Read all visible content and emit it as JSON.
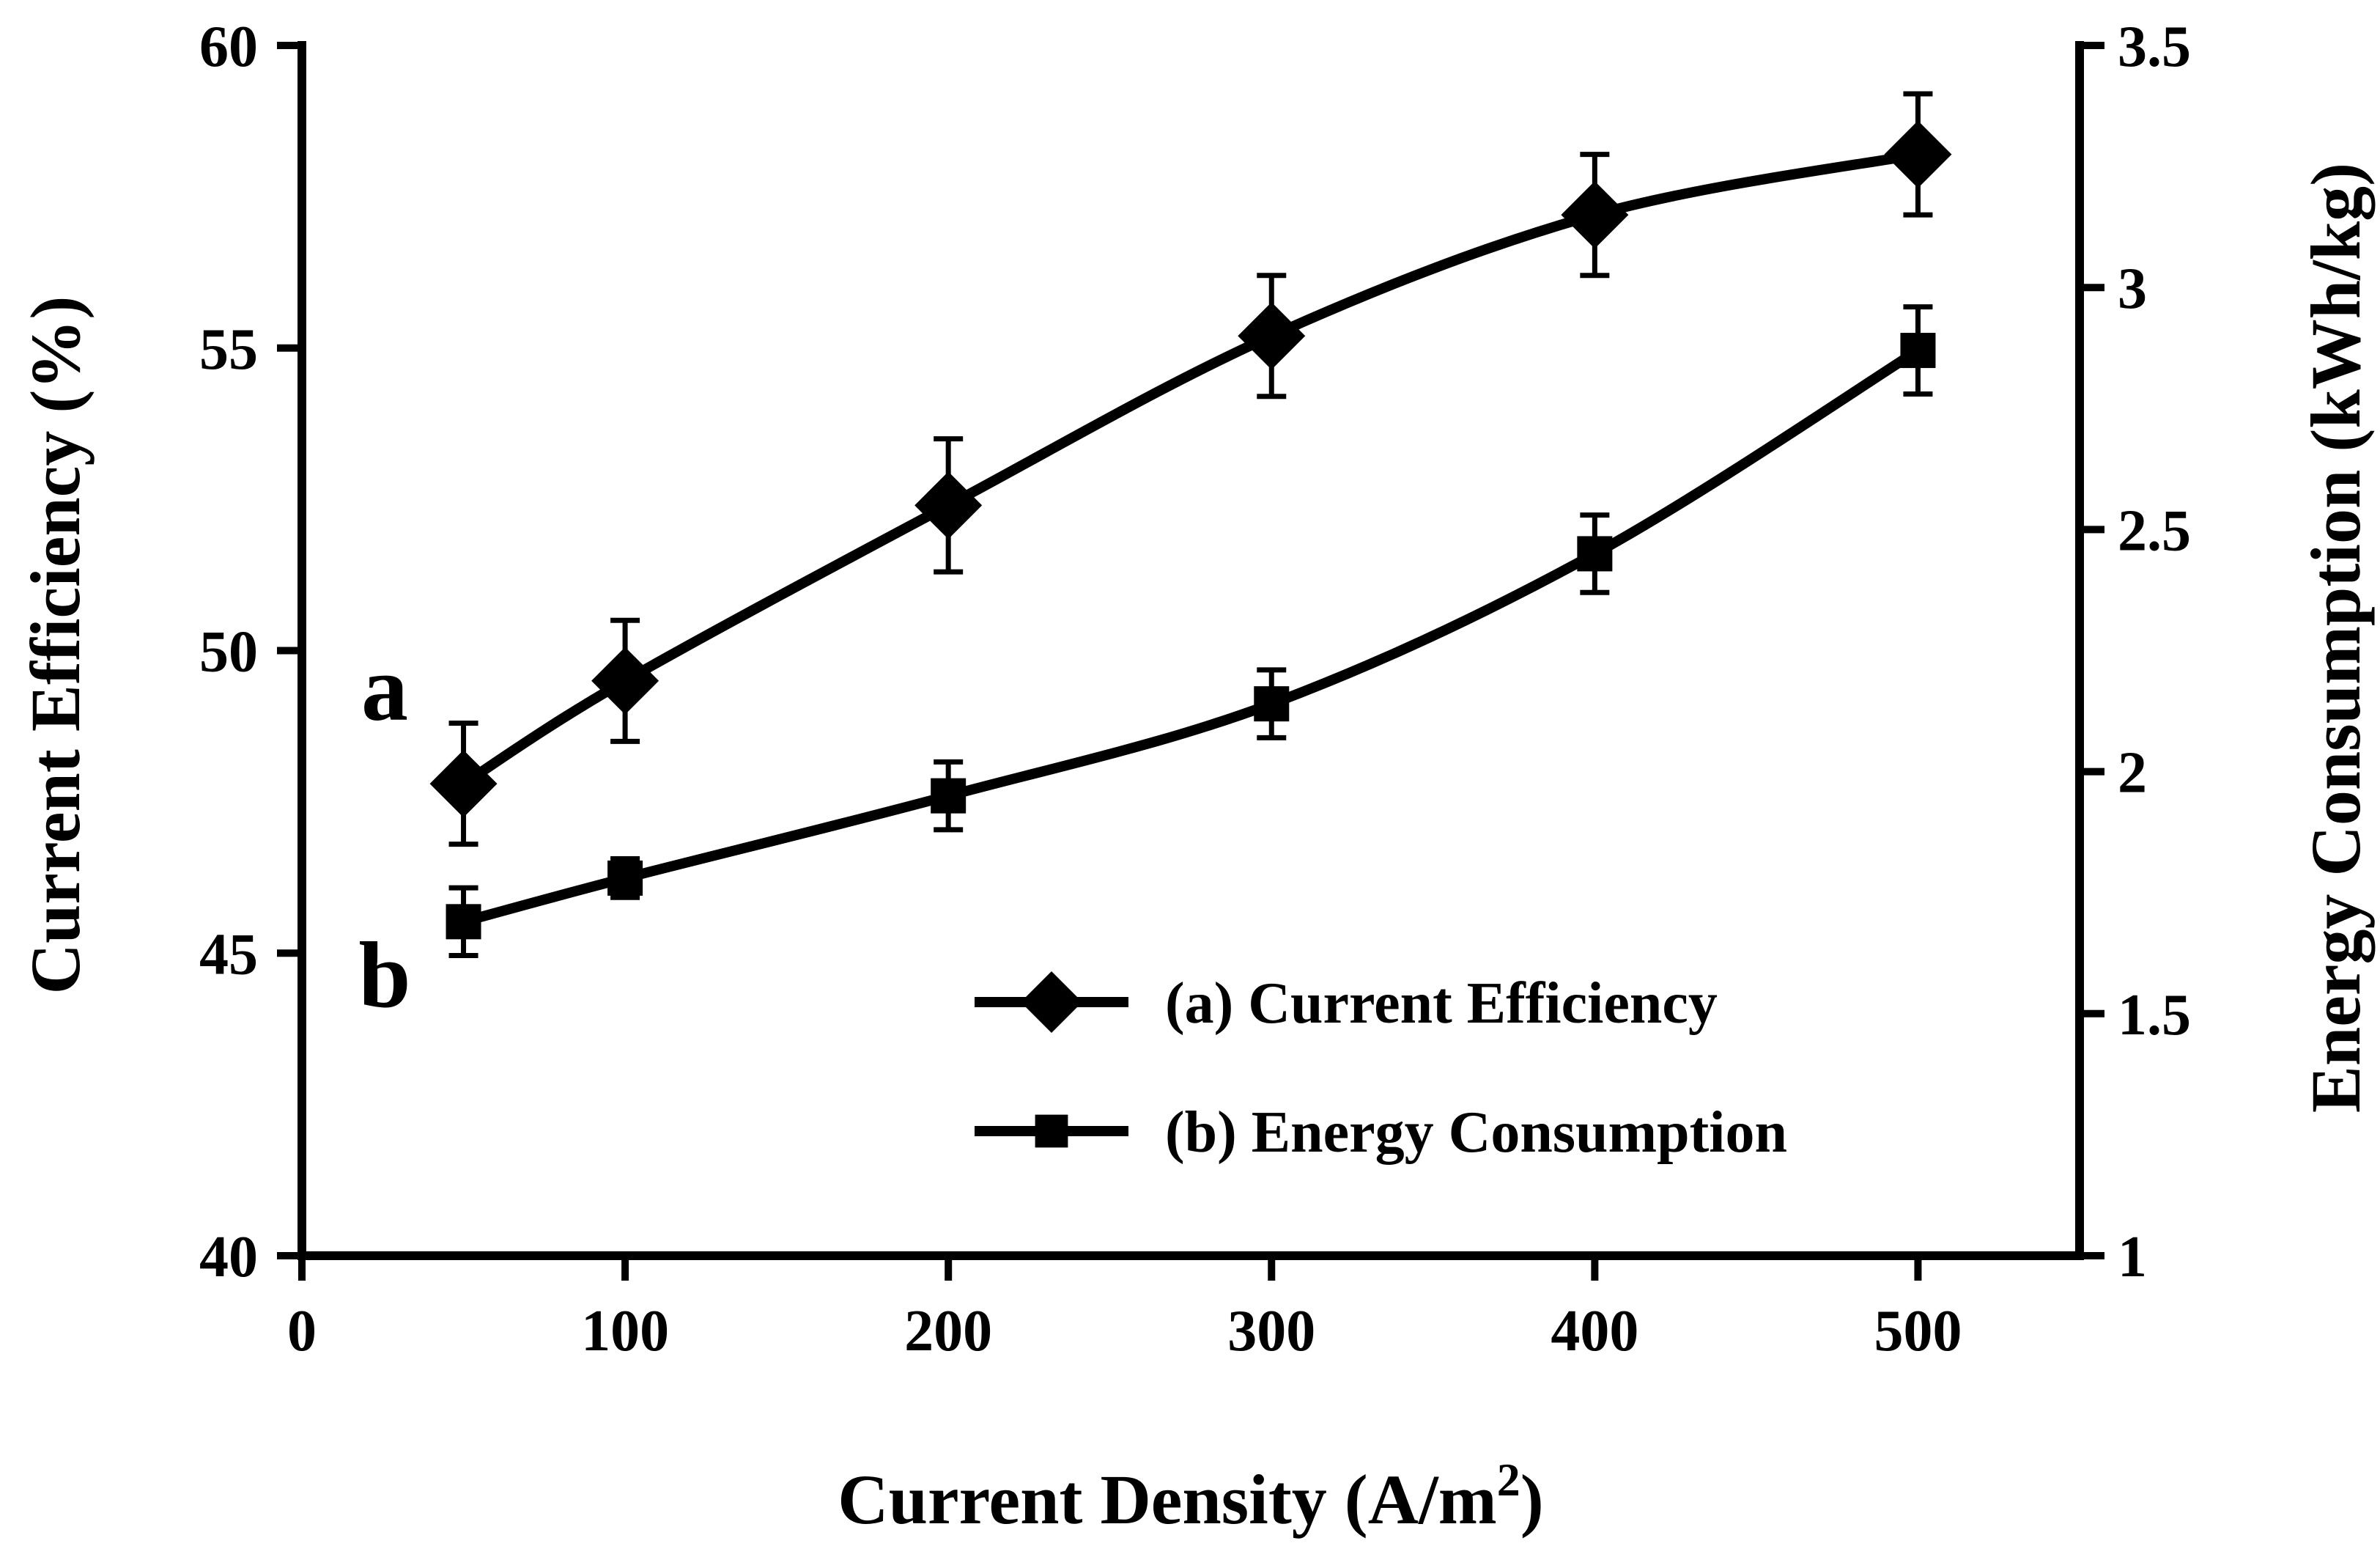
{
  "chart_data": {
    "type": "line",
    "x": [
      50,
      100,
      200,
      300,
      400,
      500
    ],
    "xlim": [
      0,
      550
    ],
    "xticks": [
      0,
      100,
      200,
      300,
      400,
      500
    ],
    "xlabel_main": "Current Density (A/m",
    "xlabel_sup": "2",
    "xlabel_end": ")",
    "ylabel": "Current Efficiency (%)",
    "ylim": [
      40,
      60
    ],
    "yticks": [
      40,
      45,
      50,
      55,
      60
    ],
    "y2label": "Energy Consumption (kWh/kg)",
    "y2lim": [
      1,
      3.5
    ],
    "y2ticks": [
      "1",
      "1.5",
      "2",
      "2.5",
      "3",
      "3.5"
    ],
    "series": [
      {
        "name": "(a) Current Efficiency",
        "letter": "a",
        "axis": "left",
        "marker": "diamond",
        "values": [
          47.8,
          49.5,
          52.4,
          55.2,
          57.2,
          58.2
        ],
        "errors": [
          1.0,
          1.0,
          1.1,
          1.0,
          1.0,
          1.0
        ]
      },
      {
        "name": "(b) Energy Consumption",
        "letter": "b",
        "axis": "right",
        "marker": "square",
        "values": [
          1.69,
          1.78,
          1.95,
          2.14,
          2.45,
          2.87
        ],
        "errors": [
          0.07,
          0.04,
          0.07,
          0.07,
          0.08,
          0.09
        ]
      }
    ],
    "legend_position": "lower-right",
    "grid": false
  }
}
